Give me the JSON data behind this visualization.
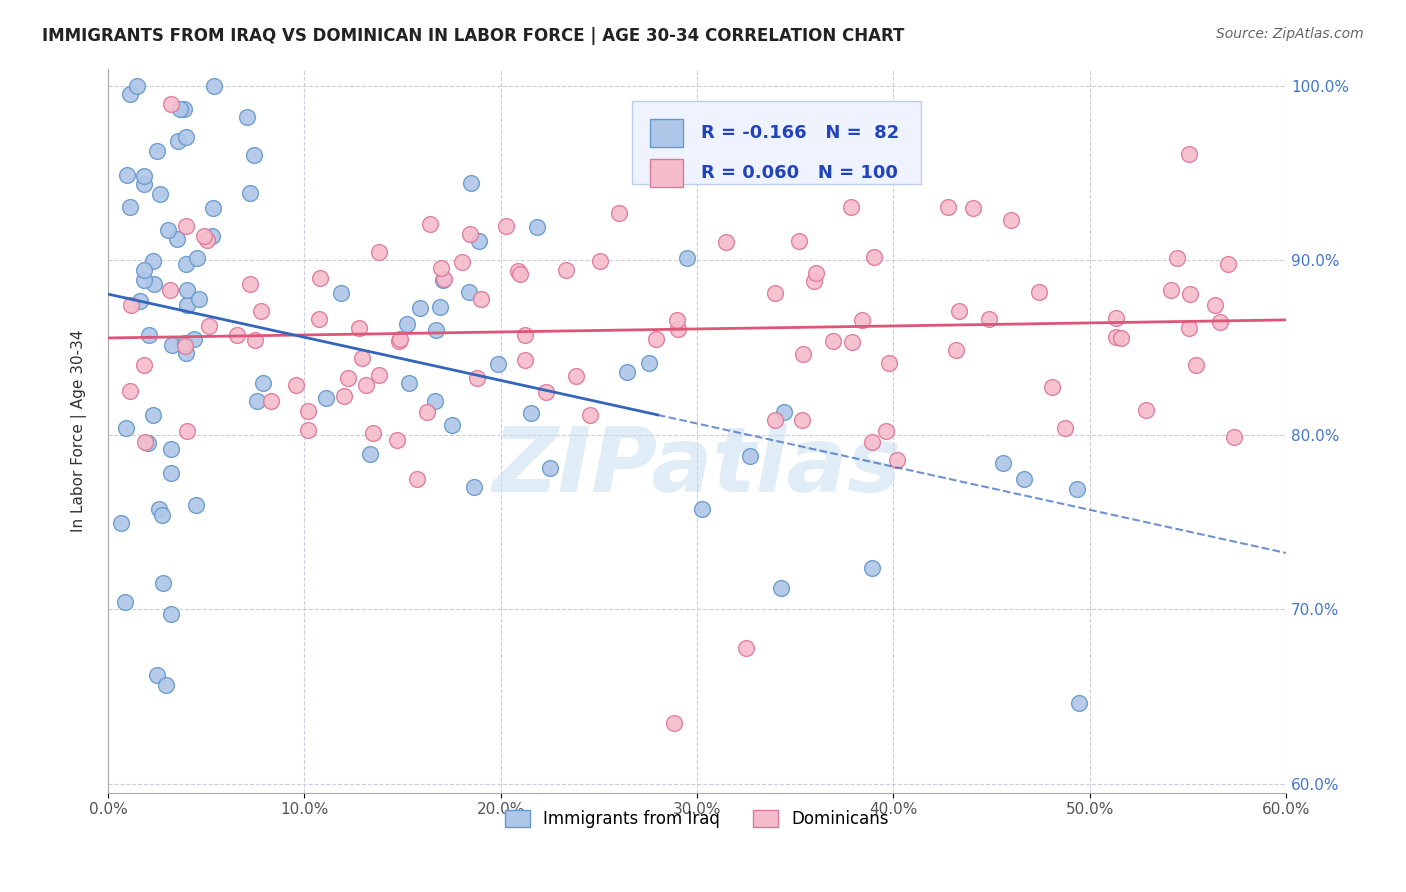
{
  "title": "IMMIGRANTS FROM IRAQ VS DOMINICAN IN LABOR FORCE | AGE 30-34 CORRELATION CHART",
  "source": "Source: ZipAtlas.com",
  "ylabel": "In Labor Force | Age 30-34",
  "xlim": [
    0.0,
    0.6
  ],
  "ylim": [
    0.595,
    1.01
  ],
  "xticks": [
    0.0,
    0.1,
    0.2,
    0.3,
    0.4,
    0.5,
    0.6
  ],
  "xticklabels": [
    "0.0%",
    "10.0%",
    "20.0%",
    "30.0%",
    "40.0%",
    "50.0%",
    "60.0%"
  ],
  "yticks": [
    0.6,
    0.7,
    0.8,
    0.9,
    1.0
  ],
  "yticklabels": [
    "60.0%",
    "70.0%",
    "80.0%",
    "90.0%",
    "100.0%"
  ],
  "iraq_R": -0.166,
  "iraq_N": 82,
  "dominican_R": 0.06,
  "dominican_N": 100,
  "iraq_color": "#aec6e8",
  "iraq_edge_color": "#6699cc",
  "dominican_color": "#f5bccb",
  "dominican_edge_color": "#dd7799",
  "iraq_trend_color": "#3366bb",
  "dominican_trend_color": "#dd5577",
  "ytick_color": "#4477cc",
  "xtick_color": "#555555",
  "background_color": "#ffffff",
  "grid_color": "#ccccdd",
  "legend_box_color": "#eef3ff",
  "legend_border_color": "#bbccee"
}
